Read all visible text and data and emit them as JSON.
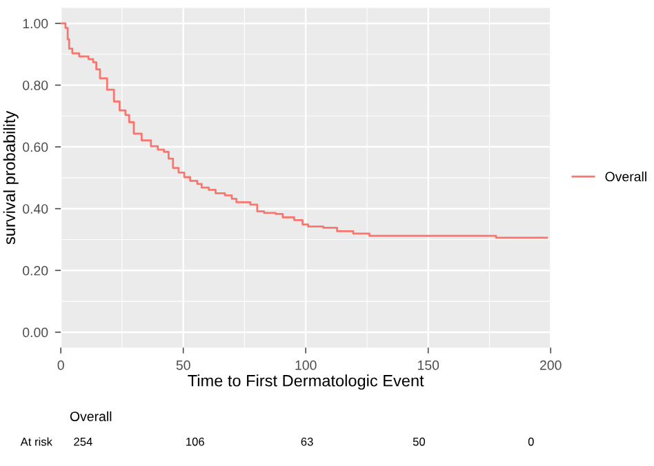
{
  "chart_data": [
    {
      "type": "step",
      "xlabel": "Time to First Dermatologic Event",
      "ylabel": "survival probability",
      "xlim": [
        0,
        200
      ],
      "ylim": [
        -0.05,
        1.05
      ],
      "xticks": [
        0,
        50,
        100,
        150,
        200
      ],
      "yticks": [
        {
          "value": 0,
          "label": "0.00"
        },
        {
          "value": 0.2,
          "label": "0.20"
        },
        {
          "value": 0.4,
          "label": "0.40"
        },
        {
          "value": 0.6,
          "label": "0.60"
        },
        {
          "value": 0.8,
          "label": "0.80"
        },
        {
          "value": 1,
          "label": "1.00"
        }
      ],
      "grid": true,
      "legend": "right",
      "series": [
        {
          "name": "Overall",
          "color": "#f8766d",
          "x": [
            0,
            1.9,
            2.8,
            3.4,
            4.7,
            7.5,
            11.3,
            13.2,
            14.5,
            16,
            18.9,
            21.7,
            24,
            26.4,
            27.9,
            29.8,
            33,
            36.8,
            39.6,
            42.1,
            44,
            45.8,
            48.1,
            50.4,
            52.8,
            55.7,
            57.5,
            60.4,
            63.2,
            67,
            69.8,
            71.7,
            77.4,
            80.2,
            83,
            87.7,
            90.6,
            95.3,
            98.7,
            101,
            107.2,
            112.8,
            119.4,
            126,
            177.7,
            198.5
          ],
          "values": [
            1.0,
            0.985,
            0.948,
            0.918,
            0.903,
            0.893,
            0.884,
            0.874,
            0.851,
            0.822,
            0.785,
            0.747,
            0.718,
            0.703,
            0.68,
            0.643,
            0.621,
            0.602,
            0.591,
            0.584,
            0.562,
            0.532,
            0.517,
            0.502,
            0.49,
            0.48,
            0.468,
            0.461,
            0.45,
            0.443,
            0.432,
            0.421,
            0.413,
            0.391,
            0.386,
            0.383,
            0.372,
            0.363,
            0.349,
            0.342,
            0.338,
            0.327,
            0.319,
            0.312,
            0.306,
            0.306
          ]
        }
      ]
    },
    {
      "type": "other",
      "title": "Overall",
      "ylabel": "At risk",
      "categories": [
        null,
        null,
        null,
        null,
        null
      ],
      "values": [
        254,
        106,
        63,
        50,
        0
      ],
      "data_labels": true
    }
  ]
}
